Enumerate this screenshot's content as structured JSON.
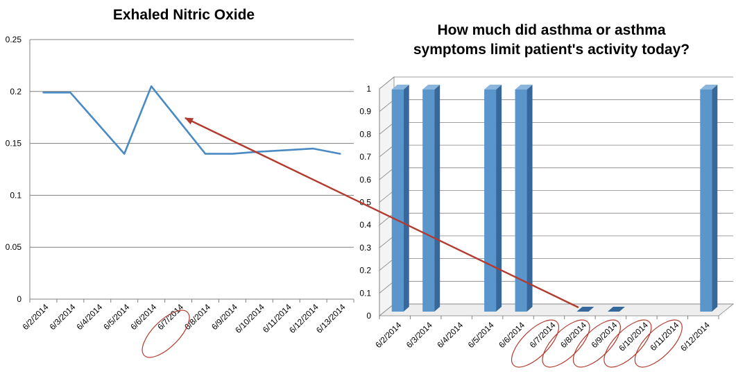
{
  "colors": {
    "line": "#4a8ac4",
    "bar_front": "#5a95cb",
    "bar_side": "#37689b",
    "bar_top": "#8ab5dc",
    "grid": "#808080",
    "annotation": "#b23a2e"
  },
  "chart_data": [
    {
      "type": "line",
      "title": "Exhaled Nitric Oxide",
      "xlabel": "",
      "ylabel": "",
      "categories": [
        "6/2/2014",
        "6/3/2014",
        "6/4/2014",
        "6/5/2014",
        "6/6/2014",
        "6/7/2014",
        "6/8/2014",
        "6/9/2014",
        "6/10/2014",
        "6/11/2014",
        "6/12/2014",
        "6/13/2014"
      ],
      "values": [
        0.199,
        0.199,
        null,
        0.14,
        0.205,
        null,
        0.14,
        0.14,
        0.142,
        null,
        0.145,
        0.14
      ],
      "ylim": [
        0,
        0.25
      ],
      "yticks": [
        "0",
        "0.05",
        "0.1",
        "0.15",
        "0.2",
        "0.25"
      ],
      "grid": true,
      "legend": "none"
    },
    {
      "type": "bar",
      "title_lines": [
        "How much did asthma or asthma",
        "symptoms limit patient's activity today?"
      ],
      "xlabel": "",
      "ylabel": "",
      "categories": [
        "6/2/2014",
        "6/3/2014",
        "6/4/2014",
        "6/5/2014",
        "6/6/2014",
        "6/7/2014",
        "6/8/2014",
        "6/9/2014",
        "6/10/2014",
        "6/11/2014",
        "6/12/2014"
      ],
      "values": [
        1,
        1,
        null,
        1,
        1,
        null,
        0,
        0,
        null,
        null,
        1
      ],
      "ylim": [
        0,
        1
      ],
      "yticks": [
        "0",
        "0.1",
        "0.2",
        "0.3",
        "0.4",
        "0.5",
        "0.6",
        "0.7",
        "0.8",
        "0.9",
        "1"
      ],
      "grid": true,
      "legend": "none"
    }
  ],
  "annotations": {
    "left_circled": [
      "6/7/2014"
    ],
    "right_circled": [
      "6/7/2014",
      "6/8/2014",
      "6/9/2014",
      "6/10/2014",
      "6/11/2014"
    ]
  }
}
